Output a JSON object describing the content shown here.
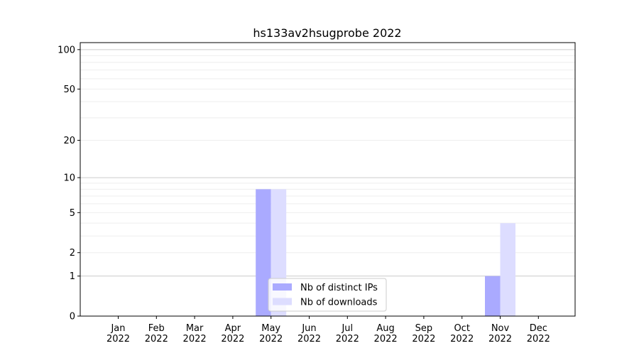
{
  "chart_data": {
    "type": "bar",
    "title": "hs133av2hsugprobe 2022",
    "xlabel": "",
    "ylabel": "",
    "yscale": "log(1+y)",
    "ylim": [
      0,
      113
    ],
    "yticks": [
      0,
      1,
      2,
      5,
      10,
      20,
      50,
      100
    ],
    "grid": true,
    "legend_position": "lower-center",
    "categories": [
      "Jan\n2022",
      "Feb\n2022",
      "Mar\n2022",
      "Apr\n2022",
      "May\n2022",
      "Jun\n2022",
      "Jul\n2022",
      "Aug\n2022",
      "Sep\n2022",
      "Oct\n2022",
      "Nov\n2022",
      "Dec\n2022"
    ],
    "series": [
      {
        "name": "Nb of distinct IPs",
        "color": "#aaaaff",
        "values": [
          0,
          0,
          0,
          0,
          8,
          0,
          0,
          0,
          0,
          0,
          1,
          0
        ]
      },
      {
        "name": "Nb of downloads",
        "color": "#ddddff",
        "values": [
          0,
          0,
          0,
          0,
          8,
          0,
          0,
          0,
          0,
          0,
          4,
          0
        ]
      }
    ]
  }
}
